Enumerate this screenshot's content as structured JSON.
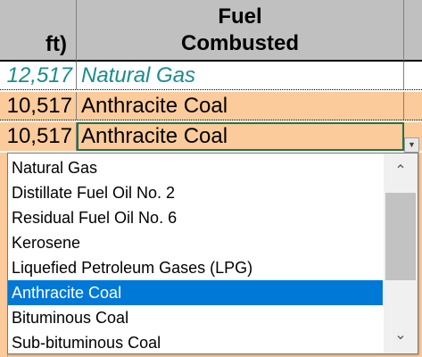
{
  "header": {
    "left_fragment": "ft)",
    "fuel_line1": "Fuel",
    "fuel_line2": "Combusted"
  },
  "rows": [
    {
      "value": "12,517",
      "fuel": "Natural Gas"
    },
    {
      "value": "10,517",
      "fuel": "Anthracite Coal"
    },
    {
      "value": "10,517",
      "fuel": "Anthracite Coal"
    }
  ],
  "dropdown": {
    "button_glyph": "▼",
    "options": [
      "Natural Gas",
      "Distillate Fuel Oil No. 2",
      "Residual Fuel Oil No. 6",
      "Kerosene",
      "Liquefied Petroleum Gases (LPG)",
      "Anthracite Coal",
      "Bituminous Coal",
      "Sub-bituminous Coal"
    ],
    "selected": "Anthracite Coal",
    "scroll_up_glyph": "⌃",
    "scroll_down_glyph": "⌄"
  },
  "colors": {
    "header_bg": "#c0c0c0",
    "row_highlight": "#fbcb9b",
    "teal_text": "#1b8b8b",
    "selection": "#0078d7"
  }
}
